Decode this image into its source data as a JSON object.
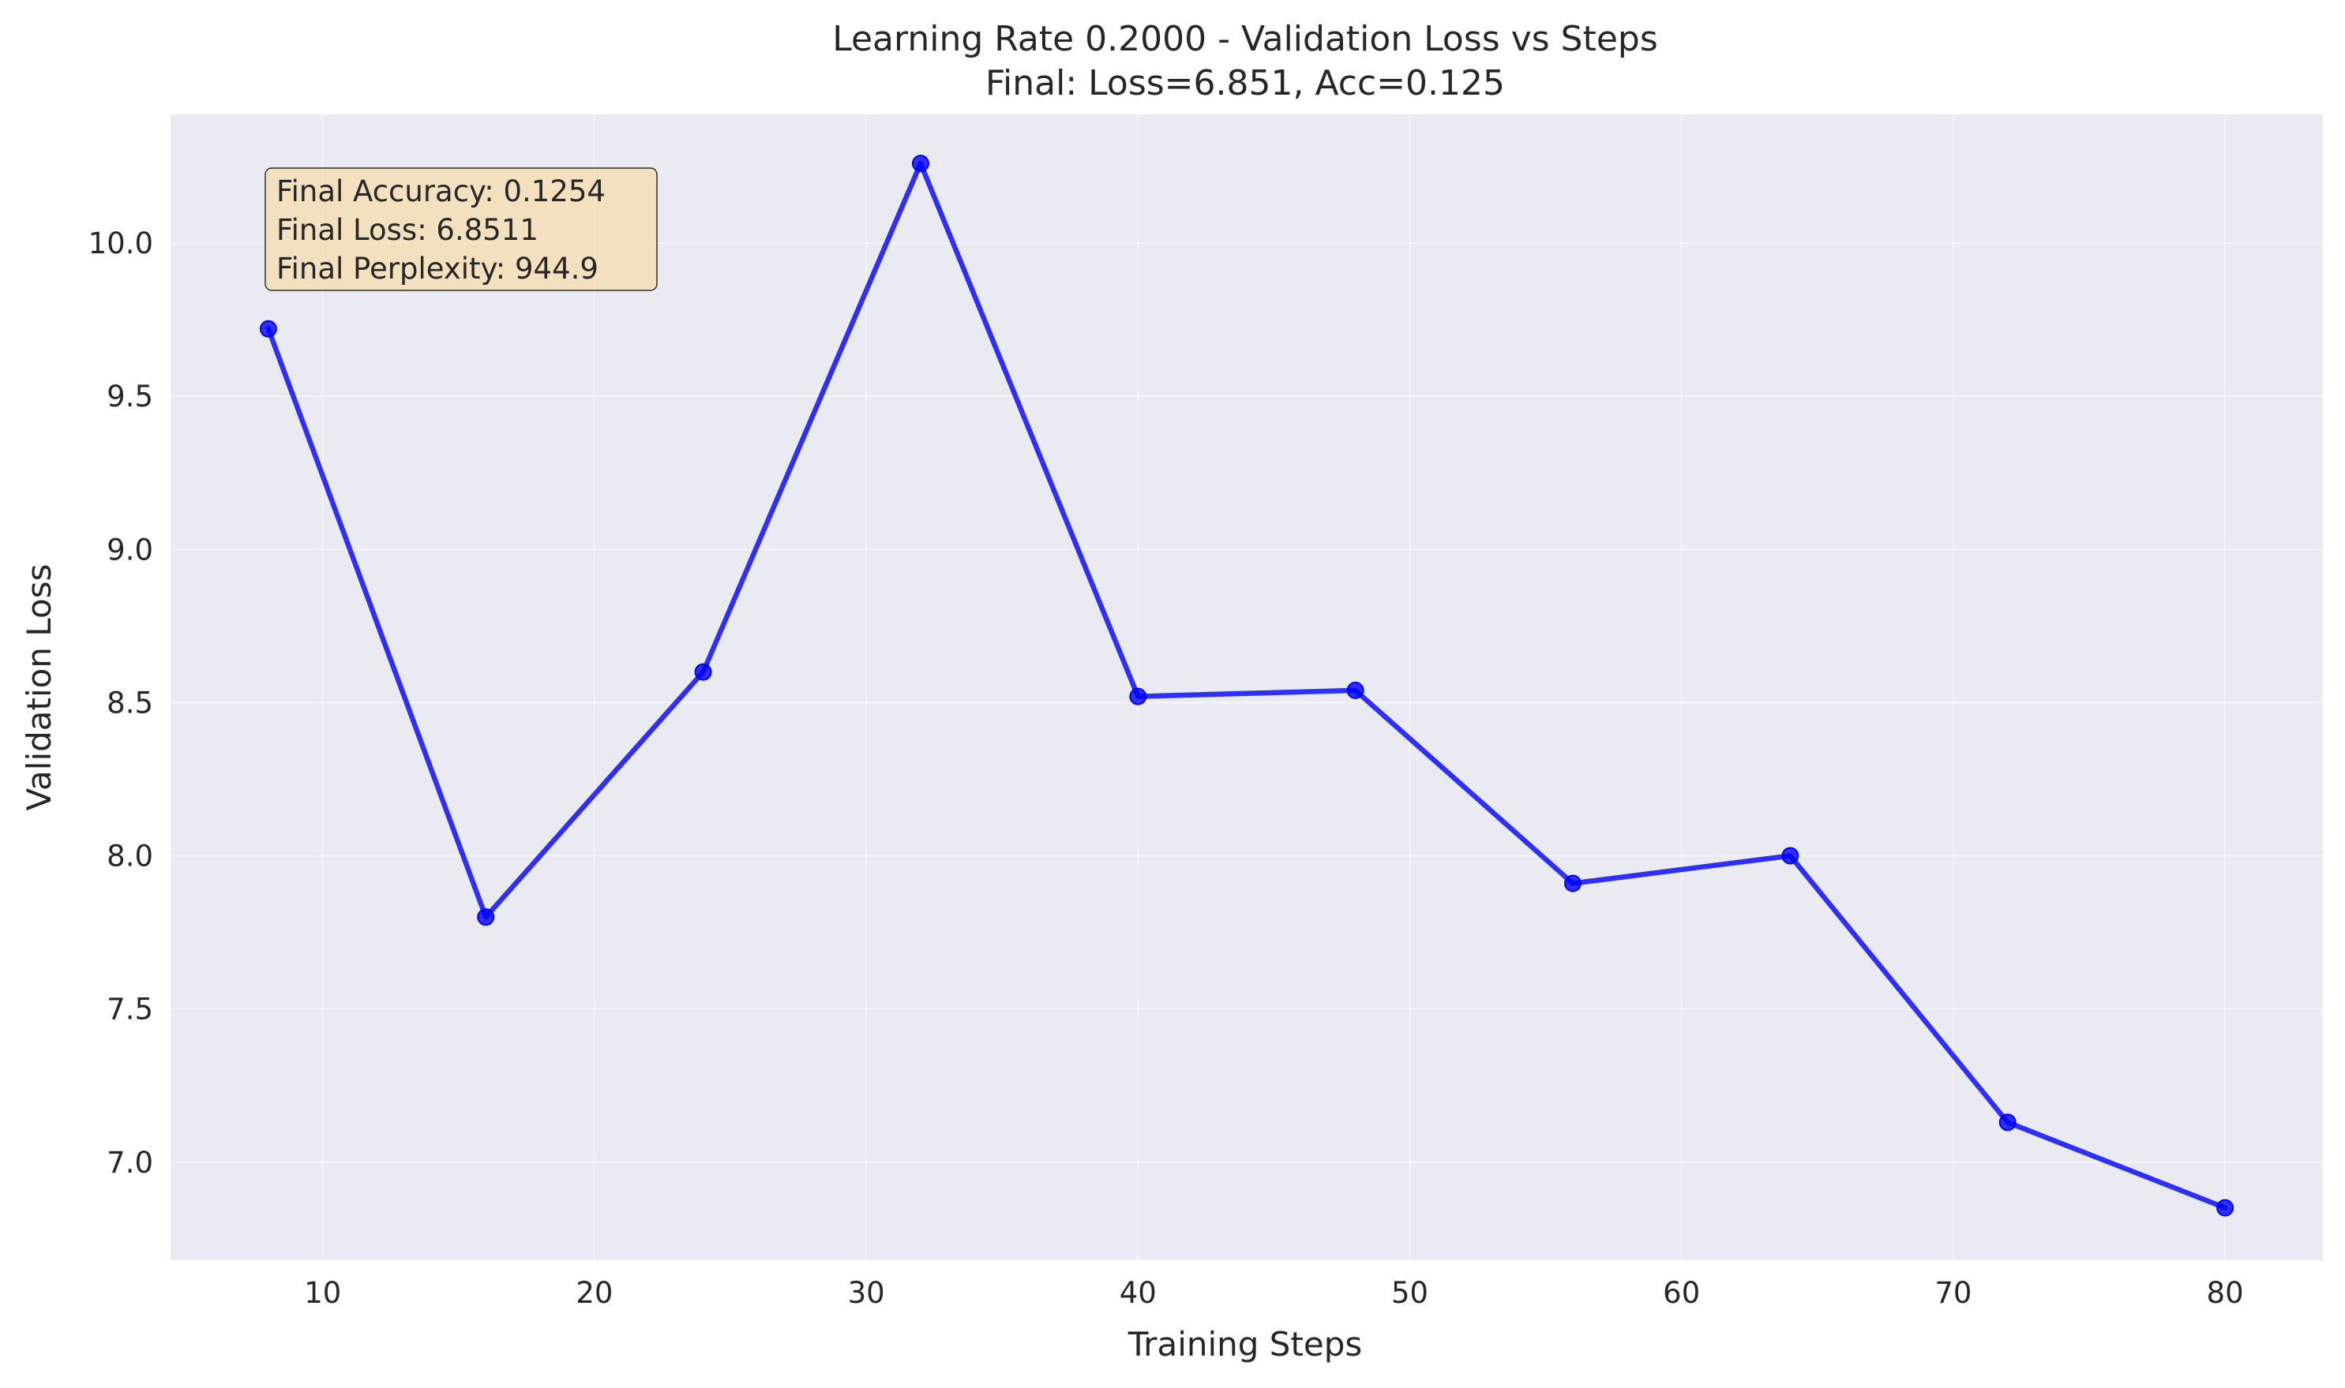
{
  "chart_data": {
    "type": "line",
    "title": "Learning Rate 0.2000 - Validation Loss vs Steps",
    "subtitle": "Final: Loss=6.851, Acc=0.125",
    "xlabel": "Training Steps",
    "ylabel": "Validation Loss",
    "xlim": [
      4.4,
      83.6
    ],
    "ylim": [
      6.68,
      10.42
    ],
    "x_ticks": [
      10,
      20,
      30,
      40,
      50,
      60,
      70,
      80
    ],
    "x_tick_labels": [
      "10",
      "20",
      "30",
      "40",
      "50",
      "60",
      "70",
      "80"
    ],
    "y_ticks": [
      7.0,
      7.5,
      8.0,
      8.5,
      9.0,
      9.5,
      10.0
    ],
    "y_tick_labels": [
      "7.0",
      "7.5",
      "8.0",
      "8.5",
      "9.0",
      "9.5",
      "10.0"
    ],
    "grid": true,
    "series": [
      {
        "color": "#0000ff",
        "x": [
          8,
          16,
          24,
          32,
          40,
          48,
          56,
          64,
          72,
          80
        ],
        "y": [
          9.72,
          7.8,
          8.6,
          10.26,
          8.52,
          8.54,
          7.91,
          8.0,
          7.13,
          6.851
        ]
      }
    ],
    "annotation": {
      "lines": [
        "Final Accuracy: 0.1254",
        "Final Loss: 6.8511",
        "Final Perplexity: 944.9"
      ],
      "placement": "top-left",
      "background": "#f5deb3"
    }
  }
}
